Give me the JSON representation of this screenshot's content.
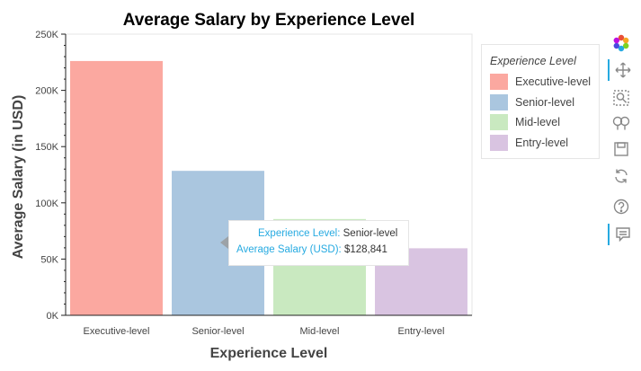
{
  "chart_data": {
    "type": "bar",
    "title": "Average Salary by Experience Level",
    "xlabel": "Experience Level",
    "ylabel": "Average Salary (in USD)",
    "categories": [
      "Executive-level",
      "Senior-level",
      "Mid-level",
      "Entry-level"
    ],
    "values": [
      226500,
      128841,
      86000,
      60000
    ],
    "colors": [
      "#fba8a0",
      "#aac6df",
      "#c9e9c0",
      "#d9c4e1"
    ],
    "ylim": [
      0,
      250000
    ],
    "yticks": [
      "0K",
      "50K",
      "100K",
      "150K",
      "200K",
      "250K"
    ],
    "legend_position": "right",
    "grid": false
  },
  "legend": {
    "title": "Experience Level",
    "items": [
      {
        "label": "Executive-level",
        "color": "#fba8a0"
      },
      {
        "label": "Senior-level",
        "color": "#aac6df"
      },
      {
        "label": "Mid-level",
        "color": "#c9e9c0"
      },
      {
        "label": "Entry-level",
        "color": "#d9c4e1"
      }
    ]
  },
  "tooltip": {
    "key1": "Experience Level:",
    "val1": "Senior-level",
    "key2": "Average Salary (USD):",
    "val2": "$128,841"
  },
  "toolbar": {
    "icons": [
      "bokeh-logo-icon",
      "pan-icon",
      "box-zoom-icon",
      "wheel-zoom-icon",
      "save-icon",
      "reset-icon",
      "help-icon",
      "hover-icon"
    ],
    "accent": "#26aae1"
  }
}
